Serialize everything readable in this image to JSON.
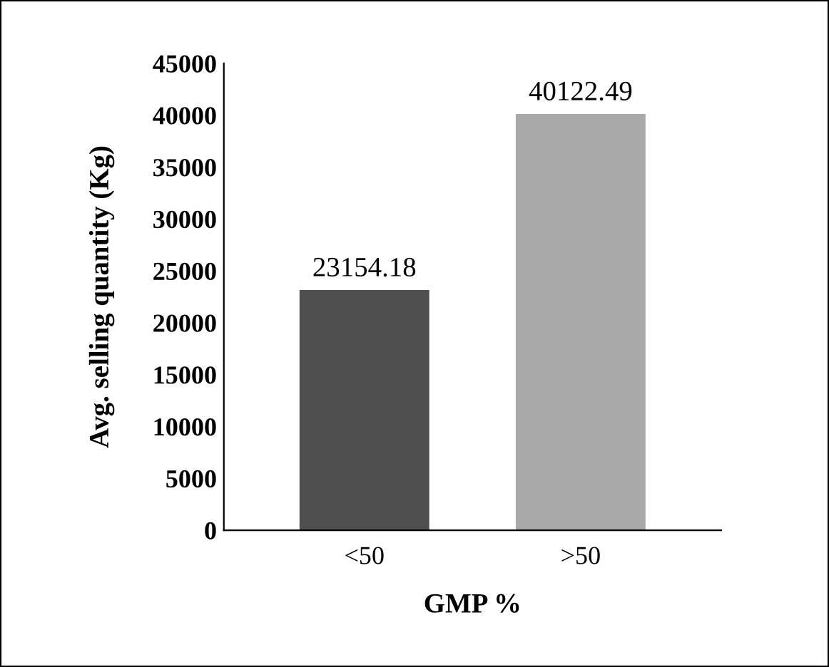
{
  "chart_data": {
    "type": "bar",
    "xlabel": "GMP %",
    "ylabel": "Avg. selling quantity (Kg)",
    "categories": [
      "<50",
      ">50"
    ],
    "values": [
      23154.18,
      40122.49
    ],
    "colors": [
      "#4f4f4f",
      "#a9a9a9"
    ],
    "ylim": [
      0,
      45000
    ],
    "yticks": [
      0,
      5000,
      10000,
      15000,
      20000,
      25000,
      30000,
      35000,
      40000,
      45000
    ],
    "data_labels": true,
    "grid": false
  }
}
